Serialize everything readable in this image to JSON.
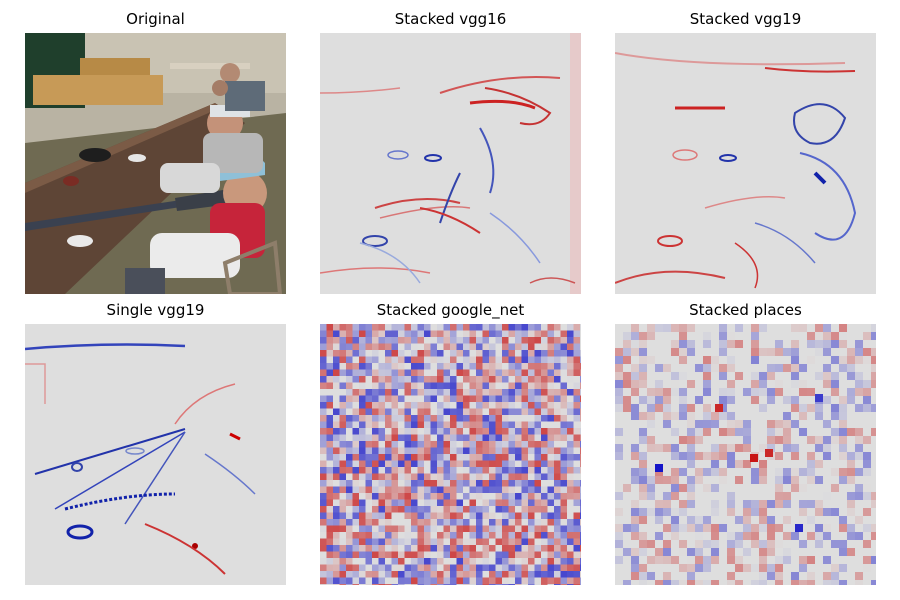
{
  "figure": {
    "panels": [
      {
        "title": "Original",
        "kind": "photo"
      },
      {
        "title": "Stacked vgg16",
        "kind": "saliency-edges"
      },
      {
        "title": "Stacked vgg19",
        "kind": "saliency-edges"
      },
      {
        "title": "Single vgg19",
        "kind": "saliency-edges"
      },
      {
        "title": "Stacked google_net",
        "kind": "saliency-checker"
      },
      {
        "title": "Stacked places",
        "kind": "saliency-blocks"
      }
    ],
    "colors": {
      "positive": "#cc0000",
      "negative": "#0000cc",
      "neutral": "#dcdcdc"
    }
  }
}
